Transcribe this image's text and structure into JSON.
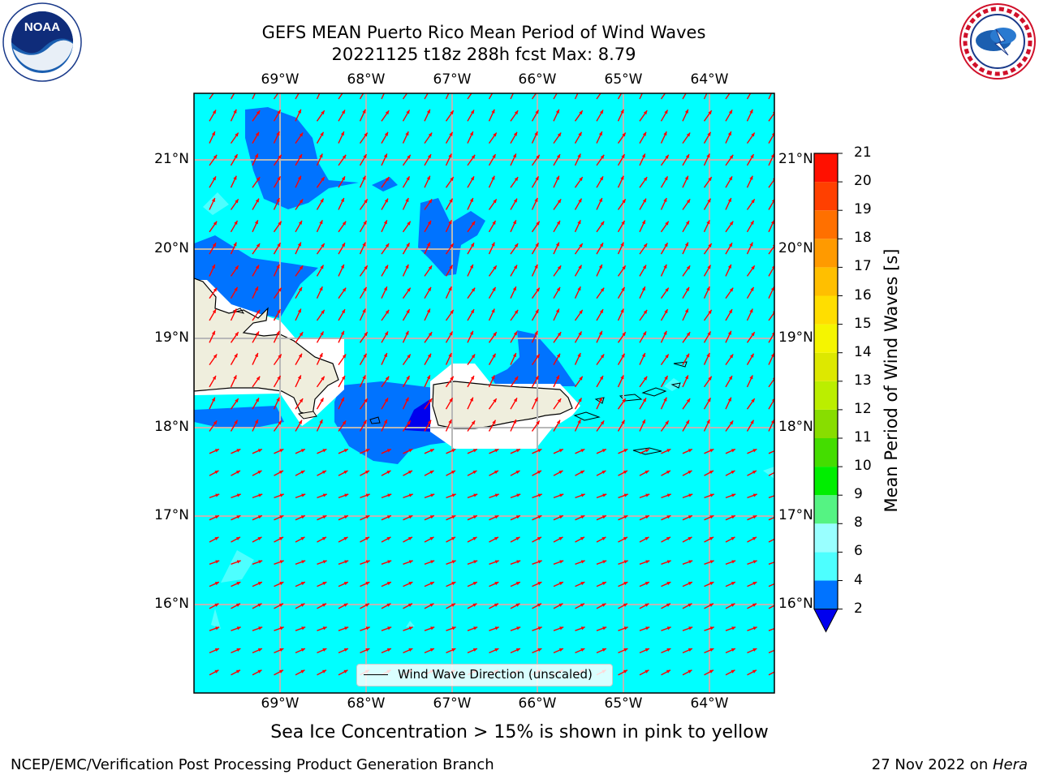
{
  "title": {
    "line1": "GEFS MEAN Puerto Rico Mean Period of Wind Waves",
    "line2": "20221125 t18z 288h fcst   Max: 8.79"
  },
  "logos": {
    "left": "noaa-logo",
    "left_text": "NOAA",
    "left_ring_text": "NATIONAL OCEANIC AND ATMOSPHERIC ADMINISTRATION · U.S. DEPARTMENT OF COMMERCE",
    "right": "national-weather-service-logo",
    "right_ring_text": "NATIONAL WEATHER SERVICE"
  },
  "map": {
    "lon_labels": [
      "69°W",
      "68°W",
      "67°W",
      "66°W",
      "65°W",
      "64°W"
    ],
    "lat_labels": [
      "21°N",
      "20°N",
      "19°N",
      "18°N",
      "17°N",
      "16°N"
    ],
    "legend_label": "Wind Wave Direction (unscaled)",
    "ocean_color": "#00ffff",
    "land_color": "#efeedd",
    "arrow_color": "#ff0000"
  },
  "colorbar": {
    "label": "Mean Period of Wind Waves [s]",
    "ticks": [
      "2",
      "4",
      "6",
      "8",
      "9",
      "10",
      "11",
      "12",
      "13",
      "14",
      "15",
      "16",
      "17",
      "18",
      "19",
      "20",
      "21"
    ],
    "colors": [
      "#0073ff",
      "#00ffff",
      "#4dffff",
      "#99ffff",
      "#55f383",
      "#00ee00",
      "#44dd00",
      "#88dd00",
      "#bbee00",
      "#dde800",
      "#f5f500",
      "#ffde00",
      "#ffbf00",
      "#ff9a00",
      "#ff7000",
      "#ff4000",
      "#ff1000"
    ],
    "under_color": "#0000ee"
  },
  "caption": "Sea Ice Concentration > 15% is shown in pink to yellow",
  "footer": {
    "left": "NCEP/EMC/Verification Post Processing Product Generation Branch",
    "right_prefix": "27 Nov 2022 on ",
    "right_host": "Hera"
  }
}
